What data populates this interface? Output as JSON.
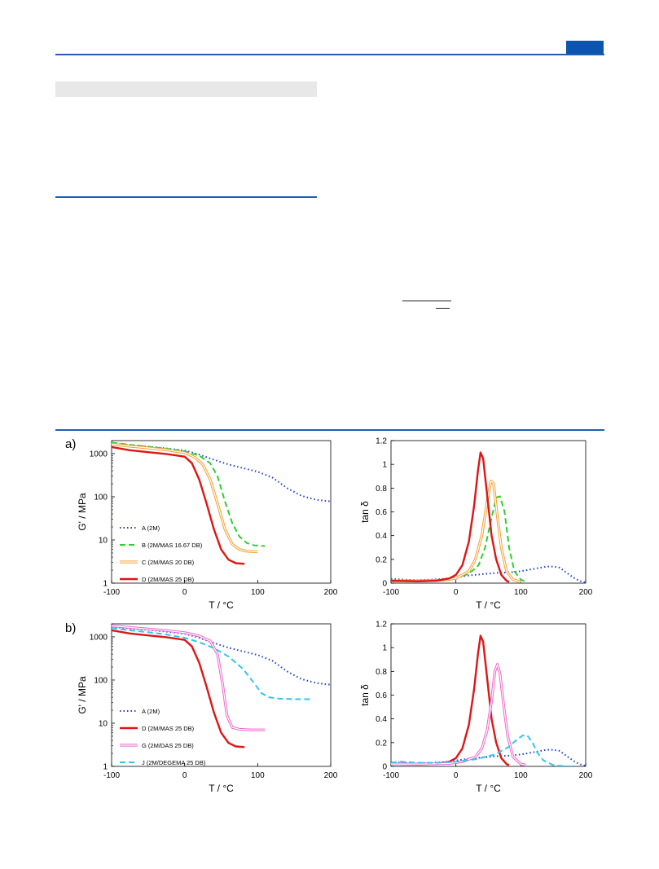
{
  "colors": {
    "rule": "#1f5fb0",
    "tab": "#0b55b0",
    "gray_bar": "#e8e8e8"
  },
  "panel_labels": [
    "a)",
    "b)"
  ],
  "chart_data": [
    {
      "type": "line",
      "panel": "a) left",
      "xlabel": "T / °C",
      "ylabel": "G' / MPa",
      "xlim": [
        -100,
        200
      ],
      "ylim": [
        1,
        2000
      ],
      "yscale": "log",
      "xticks": [
        "-100",
        "0",
        "100",
        "200"
      ],
      "yticks": [
        "1",
        "10",
        "100",
        "1000"
      ],
      "legend": {
        "placement": "bottom-left"
      },
      "series": [
        {
          "name": "A (2M)",
          "color": "#1f3fd0",
          "dash": "dot",
          "x": [
            -100,
            -75,
            -50,
            -25,
            0,
            20,
            40,
            60,
            80,
            100,
            120,
            140,
            160,
            180,
            200
          ],
          "y": [
            1700,
            1560,
            1450,
            1320,
            1180,
            950,
            720,
            560,
            460,
            380,
            280,
            160,
            105,
            85,
            78
          ]
        },
        {
          "name": "B (2M/MAS 16.67 DB)",
          "color": "#2ed02e",
          "dash": "dash",
          "x": [
            -100,
            -75,
            -50,
            -25,
            0,
            20,
            35,
            45,
            55,
            65,
            75,
            85,
            95,
            110
          ],
          "y": [
            1800,
            1600,
            1450,
            1300,
            1130,
            900,
            600,
            300,
            80,
            25,
            12,
            8.5,
            7.5,
            7.2
          ]
        },
        {
          "name": "C (2M/MAS 20 DB)",
          "color": "#f5a030",
          "dash": "double",
          "x": [
            -100,
            -75,
            -50,
            -25,
            0,
            15,
            25,
            35,
            45,
            55,
            65,
            75,
            85,
            100
          ],
          "y": [
            1650,
            1480,
            1350,
            1220,
            1050,
            800,
            550,
            250,
            70,
            18,
            8,
            6,
            5.5,
            5.3
          ]
        },
        {
          "name": "D (2M/MAS 25 DB)",
          "color": "#e01515",
          "dash": "solid",
          "x": [
            -100,
            -75,
            -50,
            -25,
            0,
            10,
            20,
            30,
            40,
            50,
            60,
            70,
            82
          ],
          "y": [
            1420,
            1200,
            1080,
            980,
            850,
            600,
            250,
            70,
            18,
            6,
            3.5,
            2.9,
            2.8
          ]
        }
      ]
    },
    {
      "type": "line",
      "panel": "a) right",
      "xlabel": "T / °C",
      "ylabel": "tan δ",
      "xlim": [
        -100,
        200
      ],
      "ylim": [
        0,
        1.2
      ],
      "xticks": [
        "-100",
        "0",
        "100",
        "200"
      ],
      "yticks": [
        "0",
        "0.2",
        "0.4",
        "0.6",
        "0.8",
        "1",
        "1.2"
      ],
      "series": [
        {
          "name": "A (2M)",
          "color": "#1f3fd0",
          "dash": "dot",
          "x": [
            -100,
            -60,
            -20,
            0,
            20,
            40,
            60,
            80,
            100,
            120,
            140,
            150,
            160,
            170,
            180,
            190,
            200
          ],
          "y": [
            0.035,
            0.025,
            0.035,
            0.05,
            0.065,
            0.075,
            0.085,
            0.09,
            0.1,
            0.12,
            0.14,
            0.14,
            0.13,
            0.09,
            0.05,
            0.02,
            0.005
          ]
        },
        {
          "name": "B (2M/MAS 16.67 DB)",
          "color": "#2ed02e",
          "dash": "dash",
          "x": [
            -100,
            -50,
            -20,
            0,
            20,
            35,
            45,
            55,
            62,
            68,
            75,
            82,
            90,
            100,
            108
          ],
          "y": [
            0.02,
            0.02,
            0.025,
            0.04,
            0.08,
            0.15,
            0.3,
            0.55,
            0.72,
            0.73,
            0.6,
            0.3,
            0.1,
            0.03,
            0.01
          ]
        },
        {
          "name": "C (2M/MAS 20 DB)",
          "color": "#f5a030",
          "dash": "double",
          "x": [
            -100,
            -50,
            -20,
            0,
            20,
            30,
            40,
            48,
            54,
            58,
            63,
            70,
            78,
            88,
            100
          ],
          "y": [
            0.02,
            0.02,
            0.025,
            0.04,
            0.1,
            0.2,
            0.4,
            0.68,
            0.86,
            0.84,
            0.6,
            0.3,
            0.1,
            0.03,
            0.01
          ]
        },
        {
          "name": "D (2M/MAS 25 DB)",
          "color": "#e01515",
          "dash": "solid",
          "x": [
            -100,
            -60,
            -30,
            -10,
            0,
            10,
            20,
            28,
            34,
            38,
            42,
            48,
            55,
            62,
            70,
            78,
            82
          ],
          "y": [
            0.02,
            0.015,
            0.02,
            0.04,
            0.07,
            0.15,
            0.35,
            0.65,
            0.95,
            1.1,
            1.05,
            0.75,
            0.4,
            0.2,
            0.07,
            0.02,
            0.01
          ]
        }
      ]
    },
    {
      "type": "line",
      "panel": "b) left",
      "xlabel": "T / °C",
      "ylabel": "G' / MPa",
      "xlim": [
        -100,
        200
      ],
      "ylim": [
        1,
        2000
      ],
      "yscale": "log",
      "xticks": [
        "-100",
        "0",
        "100",
        "200"
      ],
      "yticks": [
        "1",
        "10",
        "100",
        "1000"
      ],
      "legend": {
        "placement": "bottom-left"
      },
      "series": [
        {
          "name": "A (2M)",
          "color": "#1f3fd0",
          "dash": "dot",
          "x": [
            -100,
            -75,
            -50,
            -25,
            0,
            20,
            40,
            60,
            80,
            100,
            120,
            140,
            160,
            180,
            200
          ],
          "y": [
            1700,
            1560,
            1450,
            1320,
            1180,
            950,
            720,
            560,
            460,
            380,
            280,
            160,
            105,
            85,
            78
          ]
        },
        {
          "name": "D (2M/MAS 25 DB)",
          "color": "#e01515",
          "dash": "solid",
          "x": [
            -100,
            -75,
            -50,
            -25,
            0,
            10,
            20,
            30,
            40,
            50,
            60,
            70,
            82
          ],
          "y": [
            1420,
            1200,
            1080,
            980,
            850,
            600,
            250,
            70,
            18,
            6,
            3.5,
            2.9,
            2.8
          ]
        },
        {
          "name": "G (2M/DAS 25 DB)",
          "color": "#ee66cc",
          "dash": "double",
          "x": [
            -100,
            -75,
            -50,
            -25,
            0,
            20,
            35,
            45,
            52,
            58,
            65,
            75,
            90,
            110
          ],
          "y": [
            1800,
            1650,
            1520,
            1400,
            1250,
            1050,
            800,
            400,
            80,
            15,
            8,
            7.2,
            7,
            7
          ]
        },
        {
          "name": "J (2M/DEGEMA 25 DB)",
          "color": "#30c6ee",
          "dash": "dash",
          "x": [
            -100,
            -75,
            -50,
            -25,
            0,
            20,
            40,
            60,
            80,
            95,
            105,
            115,
            130,
            150,
            175
          ],
          "y": [
            1600,
            1420,
            1280,
            1130,
            950,
            750,
            550,
            350,
            180,
            85,
            50,
            40,
            37,
            36,
            36
          ]
        }
      ]
    },
    {
      "type": "line",
      "panel": "b) right",
      "xlabel": "T / °C",
      "ylabel": "tan δ",
      "xlim": [
        -100,
        200
      ],
      "ylim": [
        0,
        1.2
      ],
      "xticks": [
        "-100",
        "0",
        "100",
        "200"
      ],
      "yticks": [
        "0",
        "0.2",
        "0.4",
        "0.6",
        "0.8",
        "1",
        "1.2"
      ],
      "series": [
        {
          "name": "A (2M)",
          "color": "#1f3fd0",
          "dash": "dot",
          "x": [
            -100,
            -60,
            -20,
            0,
            20,
            40,
            60,
            80,
            100,
            120,
            140,
            150,
            160,
            170,
            180,
            190,
            200
          ],
          "y": [
            0.035,
            0.025,
            0.035,
            0.05,
            0.065,
            0.075,
            0.085,
            0.09,
            0.1,
            0.12,
            0.14,
            0.14,
            0.13,
            0.09,
            0.05,
            0.02,
            0.005
          ]
        },
        {
          "name": "D (2M/MAS 25 DB)",
          "color": "#e01515",
          "dash": "solid",
          "x": [
            -100,
            -60,
            -30,
            -10,
            0,
            10,
            20,
            28,
            34,
            38,
            42,
            48,
            55,
            62,
            70,
            78,
            82
          ],
          "y": [
            0.02,
            0.015,
            0.02,
            0.04,
            0.07,
            0.15,
            0.35,
            0.65,
            0.95,
            1.1,
            1.05,
            0.75,
            0.4,
            0.2,
            0.07,
            0.02,
            0.01
          ]
        },
        {
          "name": "G (2M/DAS 25 DB)",
          "color": "#ee66cc",
          "dash": "double",
          "x": [
            -100,
            -50,
            -10,
            10,
            30,
            40,
            48,
            55,
            60,
            64,
            68,
            74,
            80,
            88,
            100,
            108
          ],
          "y": [
            0.02,
            0.02,
            0.025,
            0.04,
            0.08,
            0.15,
            0.3,
            0.55,
            0.8,
            0.86,
            0.78,
            0.5,
            0.25,
            0.08,
            0.02,
            0.01
          ]
        },
        {
          "name": "J (2M/DEGEMA 25 DB)",
          "color": "#30c6ee",
          "dash": "dash",
          "x": [
            -100,
            -85,
            -60,
            -30,
            0,
            30,
            60,
            80,
            95,
            103,
            110,
            118,
            125,
            135,
            150,
            170,
            185
          ],
          "y": [
            0.03,
            0.04,
            0.03,
            0.03,
            0.04,
            0.06,
            0.1,
            0.16,
            0.23,
            0.26,
            0.26,
            0.2,
            0.12,
            0.05,
            0.01,
            0.0,
            0.0
          ]
        }
      ]
    }
  ]
}
